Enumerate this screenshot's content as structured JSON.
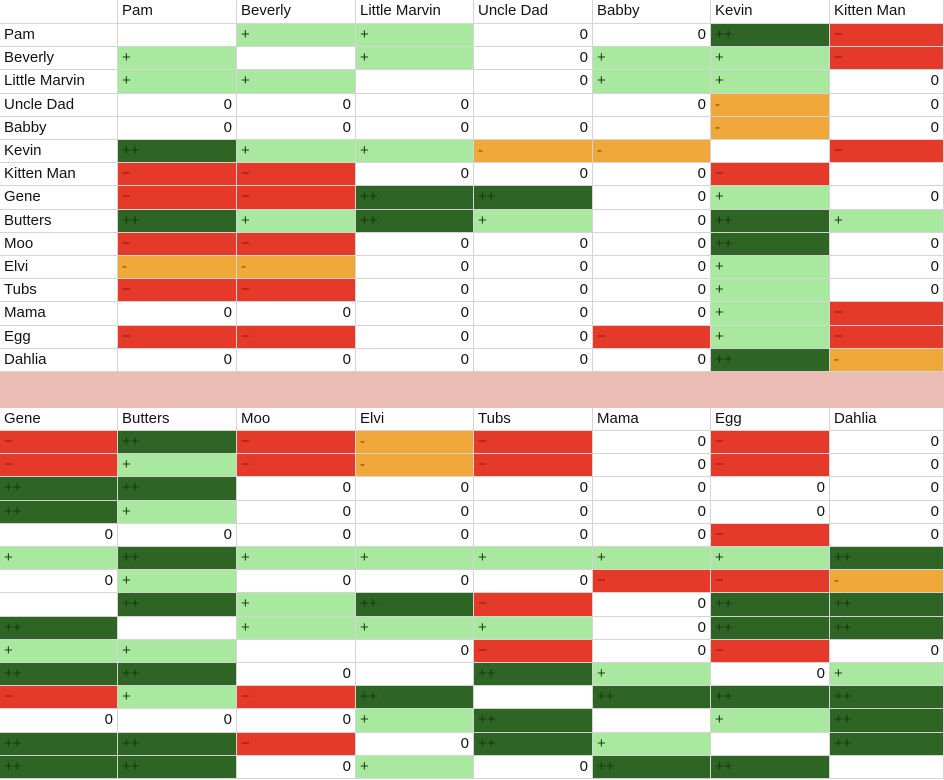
{
  "top": {
    "columns": [
      "Pam",
      "Beverly",
      "Little Marvin",
      "Uncle Dad",
      "Babby",
      "Kevin",
      "Kitten Man"
    ],
    "rows": [
      {
        "label": "Pam",
        "cells": [
          null,
          "+",
          "+",
          0,
          0,
          "++",
          "−"
        ]
      },
      {
        "label": "Beverly",
        "cells": [
          "+",
          null,
          "+",
          0,
          "+",
          "+",
          "−"
        ]
      },
      {
        "label": "Little Marvin",
        "cells": [
          "+",
          "+",
          null,
          0,
          "+",
          "+",
          0
        ]
      },
      {
        "label": "Uncle Dad",
        "cells": [
          0,
          0,
          0,
          null,
          0,
          "-",
          0
        ]
      },
      {
        "label": "Babby",
        "cells": [
          0,
          0,
          0,
          0,
          null,
          "-",
          0
        ]
      },
      {
        "label": "Kevin",
        "cells": [
          "++",
          "+",
          "+",
          "-",
          "-",
          null,
          "−"
        ]
      },
      {
        "label": "Kitten Man",
        "cells": [
          "−",
          "−",
          0,
          0,
          0,
          "−",
          null
        ]
      },
      {
        "label": "Gene",
        "cells": [
          "−",
          "−",
          "++",
          "++",
          0,
          "+",
          0
        ]
      },
      {
        "label": "Butters",
        "cells": [
          "++",
          "+",
          "++",
          "+",
          0,
          "++",
          "+"
        ]
      },
      {
        "label": "Moo",
        "cells": [
          "−",
          "−",
          0,
          0,
          0,
          "++",
          0
        ]
      },
      {
        "label": "Elvi",
        "cells": [
          "-",
          "-",
          0,
          0,
          0,
          "+",
          0
        ]
      },
      {
        "label": "Tubs",
        "cells": [
          "−",
          "−",
          0,
          0,
          0,
          "+",
          0
        ]
      },
      {
        "label": "Mama",
        "cells": [
          0,
          0,
          0,
          0,
          0,
          "+",
          "−"
        ]
      },
      {
        "label": "Egg",
        "cells": [
          "−",
          "−",
          0,
          0,
          "−",
          "+",
          "−"
        ]
      },
      {
        "label": "Dahlia",
        "cells": [
          0,
          0,
          0,
          0,
          0,
          "++",
          "-"
        ]
      }
    ]
  },
  "bottom": {
    "columns": [
      "Gene",
      "Butters",
      "Moo",
      "Elvi",
      "Tubs",
      "Mama",
      "Egg",
      "Dahlia"
    ],
    "rows": [
      [
        "−",
        "++",
        "−",
        "-",
        "−",
        0,
        "−",
        0
      ],
      [
        "−",
        "+",
        "−",
        "-",
        "−",
        0,
        "−",
        0
      ],
      [
        "++",
        "++",
        0,
        0,
        0,
        0,
        0,
        0
      ],
      [
        "++",
        "+",
        0,
        0,
        0,
        0,
        0,
        0
      ],
      [
        0,
        0,
        0,
        0,
        0,
        0,
        "−",
        0
      ],
      [
        "+",
        "++",
        "+",
        "+",
        "+",
        "+",
        "+",
        "++"
      ],
      [
        0,
        "+",
        0,
        0,
        0,
        "−",
        "−",
        "-"
      ],
      [
        null,
        "++",
        "+",
        "++",
        "−",
        0,
        "++",
        "++"
      ],
      [
        "++",
        null,
        "+",
        "+",
        "+",
        0,
        "++",
        "++"
      ],
      [
        "+",
        "+",
        null,
        0,
        "−",
        0,
        "−",
        0
      ],
      [
        "++",
        "++",
        0,
        null,
        "++",
        "+",
        0,
        "+"
      ],
      [
        "−",
        "+",
        "−",
        "++",
        null,
        "++",
        "++",
        "++"
      ],
      [
        0,
        0,
        0,
        "+",
        "++",
        null,
        "+",
        "++"
      ],
      [
        "++",
        "++",
        "−",
        0,
        "++",
        "+",
        null,
        "++"
      ],
      [
        "++",
        "++",
        0,
        "+",
        0,
        "++",
        "++",
        null
      ]
    ]
  },
  "cell_colors": {
    "+": {
      "bg": "#a9e89f",
      "fg": "#1d3d16"
    },
    "++": {
      "bg": "#2f6524",
      "fg": "#143a0e"
    },
    "−": {
      "bg": "#e5392a",
      "fg": "#8f1a10"
    },
    "-": {
      "bg": "#f0a83b",
      "fg": "#7a4a0a"
    }
  }
}
